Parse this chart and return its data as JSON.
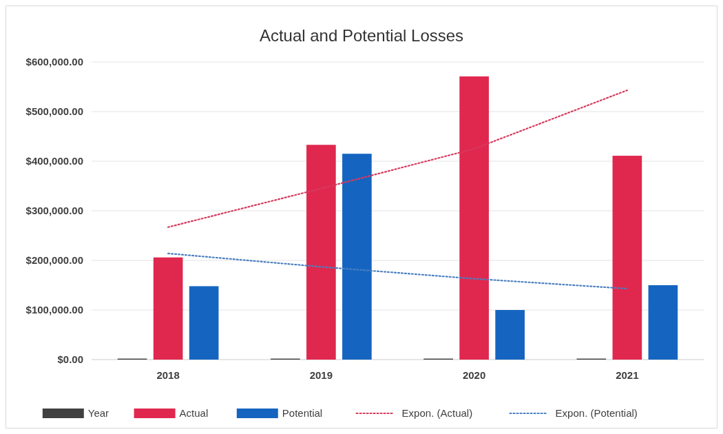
{
  "chart_data": {
    "type": "bar",
    "title": "Actual and Potential Losses",
    "categories": [
      "2018",
      "2019",
      "2020",
      "2021"
    ],
    "series": [
      {
        "name": "Year",
        "color": "#404040",
        "values": [
          2018,
          2019,
          2020,
          2021
        ]
      },
      {
        "name": "Actual",
        "color": "#e0284f",
        "values": [
          206000,
          433000,
          571000,
          411000
        ]
      },
      {
        "name": "Potential",
        "color": "#1565c0",
        "values": [
          148000,
          415000,
          100000,
          150000
        ]
      },
      {
        "name": "Expon. (Actual)",
        "type": "line",
        "color": "#d63a5e",
        "line_style": "dotted",
        "values": [
          267000,
          345000,
          425000,
          543000
        ]
      },
      {
        "name": "Expon. (Potential)",
        "type": "line",
        "color": "#4a7fc0",
        "line_style": "dotted",
        "values": [
          214000,
          187000,
          163000,
          143000
        ]
      }
    ],
    "ylim": [
      0,
      600000
    ],
    "yticks": [
      {
        "value": 0,
        "label": "$0.00"
      },
      {
        "value": 100000,
        "label": "$100,000.00"
      },
      {
        "value": 200000,
        "label": "$200,000.00"
      },
      {
        "value": 300000,
        "label": "$300,000.00"
      },
      {
        "value": 400000,
        "label": "$400,000.00"
      },
      {
        "value": 500000,
        "label": "$500,000.00"
      },
      {
        "value": 600000,
        "label": "$600,000.00"
      }
    ],
    "grid": "y",
    "legend": "bottom",
    "marker": "none"
  }
}
